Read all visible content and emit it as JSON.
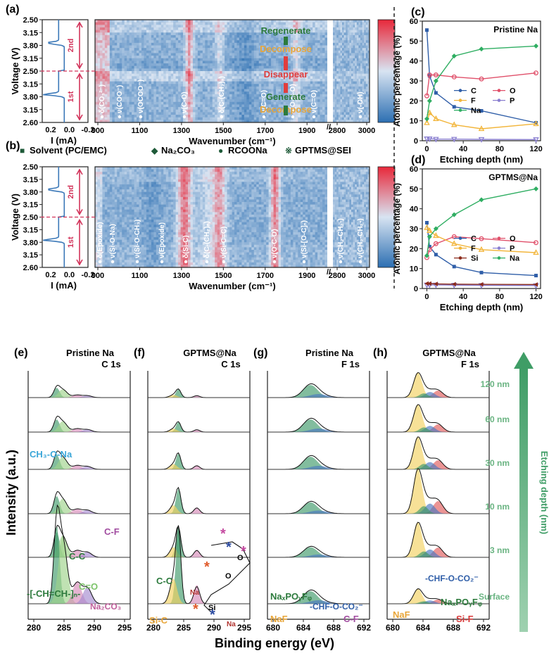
{
  "chart_data": [
    {
      "panel": "a",
      "type": "heatmap",
      "panel_label": "(a)",
      "ylabel": "Voltage (V)",
      "xlabel": "Wavenumber (cm⁻¹)",
      "voltage_ticks": [
        "2.50",
        "3.15",
        "3.80",
        "3.15",
        "2.50",
        "3.15",
        "3.80",
        "3.15",
        "2.60"
      ],
      "current_ticks": [
        "0.2",
        "0.0",
        "-0.2"
      ],
      "current_label": "I (mA)",
      "wavenumber_ticks": [
        "900",
        "1100",
        "1300",
        "1500",
        "1700",
        "1900",
        "2800",
        "3000"
      ],
      "cycles": [
        "1st",
        "2nd"
      ],
      "peak_labels": [
        "δ(CO₃²⁻)",
        "ν(COO⁻)",
        "ν(OCOO⁻)",
        "ν(C-O)",
        "δ(C-(CH₂)ₙ)",
        "ν(C=O)",
        "ν(O-C-O)",
        "ν(C=O)",
        "ν(-OH)"
      ],
      "stage_labels": [
        "Regenerate",
        "Decompose",
        "Disappear",
        "Generate",
        "Decompose"
      ]
    },
    {
      "panel": "b",
      "type": "heatmap",
      "panel_label": "(b)",
      "ylabel": "Voltage (V)",
      "xlabel": "Wavenumber (cm⁻¹)",
      "legend": [
        "Solvent (PC/EMC)",
        "Na₂CO₃",
        "RCOONa",
        "GPTMS@SEI"
      ],
      "peak_labels": [
        "δ(Epoxide)",
        "ν(Si-O-Na)",
        "ν(Si-O-CH₃)",
        "ν(Epoxide)",
        "δ(Si-C)",
        "δ(C-(CH₂)ₙ)",
        "ν(Si-C=C)",
        "ν(O-C-O)",
        "ν(Si-[O-C]ₙ)",
        "ν(CH₂-CH₂-)",
        "ν(CH₂-CH₂-)"
      ]
    },
    {
      "panel": "c",
      "type": "line",
      "panel_label": "(c)",
      "title": "Pristine Na",
      "xlabel": "Etching depth (nm)",
      "ylabel": "Atomic percentage (%)",
      "ylim": [
        0,
        60
      ],
      "xlim": [
        -5,
        125
      ],
      "yticks": [
        0,
        10,
        20,
        30,
        40,
        50,
        60
      ],
      "xticks": [
        0,
        40,
        80,
        120
      ],
      "x": [
        0,
        3,
        10,
        30,
        60,
        120
      ],
      "series": [
        {
          "name": "C",
          "color": "#2f5ea8",
          "marker": "square",
          "values": [
            55.5,
            32.5,
            24,
            17,
            15,
            9
          ]
        },
        {
          "name": "O",
          "color": "#e0506a",
          "marker": "circle",
          "values": [
            22.5,
            33,
            33,
            32,
            31,
            34
          ]
        },
        {
          "name": "F",
          "color": "#f2b53a",
          "marker": "triangle",
          "values": [
            9,
            14,
            11,
            8,
            6,
            8.5
          ]
        },
        {
          "name": "P",
          "color": "#8a7fd0",
          "marker": "triangle-down",
          "values": [
            1,
            1,
            0.8,
            0.8,
            0.7,
            0.6
          ]
        },
        {
          "name": "Na",
          "color": "#2fae62",
          "marker": "diamond",
          "values": [
            11,
            20,
            30,
            42.5,
            46,
            47.5
          ]
        }
      ]
    },
    {
      "panel": "d",
      "type": "line",
      "panel_label": "(d)",
      "title": "GPTMS@Na",
      "xlabel": "Etching depth (nm)",
      "ylabel": "Atomic percentage (%)",
      "ylim": [
        0,
        60
      ],
      "xlim": [
        -5,
        125
      ],
      "yticks": [
        0,
        10,
        20,
        30,
        40,
        50,
        60
      ],
      "xticks": [
        0,
        40,
        80,
        120
      ],
      "x": [
        0,
        3,
        10,
        30,
        60,
        120
      ],
      "series": [
        {
          "name": "C",
          "color": "#2f5ea8",
          "marker": "square",
          "values": [
            33,
            21,
            17,
            11,
            8,
            6.5
          ]
        },
        {
          "name": "O",
          "color": "#e0506a",
          "marker": "circle",
          "values": [
            15.5,
            19.5,
            22.5,
            26,
            25,
            23
          ]
        },
        {
          "name": "F",
          "color": "#f2b53a",
          "marker": "triangle",
          "values": [
            30.5,
            29,
            26.5,
            22.5,
            19.5,
            18
          ]
        },
        {
          "name": "P",
          "color": "#8a7fd0",
          "marker": "triangle-down",
          "values": [
            1.8,
            1.8,
            1.8,
            1.7,
            1.6,
            1.5
          ]
        },
        {
          "name": "Si",
          "color": "#8b2a1a",
          "marker": "triangle-left",
          "values": [
            2.5,
            2.5,
            2.3,
            2.2,
            2.1,
            2
          ]
        },
        {
          "name": "Na",
          "color": "#2fae62",
          "marker": "diamond",
          "values": [
            16.5,
            26,
            30,
            37,
            44.5,
            50
          ]
        }
      ]
    },
    {
      "panel": "e-h",
      "type": "line",
      "xlabel": "Binding energy (eV)",
      "ylabel": "Intensity (a.u.)",
      "depth_axis_label": "Etching depth (nm)",
      "depth_levels": [
        "120 nm",
        "60 nm",
        "30 nm",
        "10 nm",
        "3 nm",
        "Surface"
      ],
      "subpanels": [
        {
          "label": "(e)",
          "sample": "Pristine Na",
          "orbital": "C 1s",
          "xticks": [
            "280",
            "285",
            "290",
            "295"
          ],
          "annotations": [
            "CH₃-O-Na",
            "C-F",
            "C-C",
            "-[-CH=CH-]ₙ-",
            "C=O",
            "Na₂CO₃"
          ]
        },
        {
          "label": "(f)",
          "sample": "GPTMS@Na",
          "orbital": "C 1s",
          "xticks": [
            "280",
            "285",
            "290",
            "295"
          ],
          "annotations": [
            "C-C",
            "Si-C",
            "O",
            "O",
            "Na",
            "Na",
            "Si"
          ]
        },
        {
          "label": "(g)",
          "sample": "Pristine Na",
          "orbital": "F 1s",
          "xticks": [
            "680",
            "684",
            "688",
            "692"
          ],
          "annotations": [
            "NaF",
            "NaₓPOᵧFᵩ",
            "-CHF-O-CO₂⁻",
            "C-F"
          ]
        },
        {
          "label": "(h)",
          "sample": "GPTMS@Na",
          "orbital": "F 1s",
          "xticks": [
            "680",
            "684",
            "688",
            "692"
          ],
          "annotations": [
            "-CHF-O-CO₂⁻",
            "NaF",
            "NaₓPOᵧFᵩ",
            "Si-F"
          ]
        }
      ]
    }
  ]
}
